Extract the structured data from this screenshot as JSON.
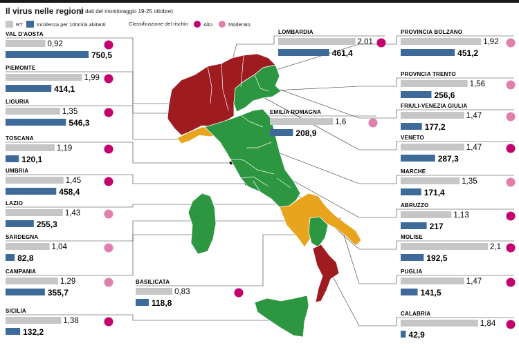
{
  "title": "Il virus nelle regioni",
  "subtitle": "(I dati del monitoraggio 19-25 ottobre)",
  "legend": {
    "rt": "RT",
    "incidence": "Incidenza per 100mila abitanti",
    "risk_label": "Classificazione del rischio",
    "high": "Alto",
    "moderate": "Moderato"
  },
  "colors": {
    "rt_bar": "#c6c6c6",
    "incidence_bar": "#3d6a98",
    "high": "#c4006e",
    "moderate": "#e07fae",
    "map_red": "#9e1b20",
    "map_green": "#2d9640",
    "map_orange": "#e9a41e"
  },
  "chart_data": {
    "type": "bar",
    "series": [
      {
        "name": "RT",
        "key": "rt"
      },
      {
        "name": "Incidenza per 100mila abitanti",
        "key": "incidence"
      }
    ],
    "rt_max": 2.1,
    "incidence_max": 750.5,
    "regions": [
      {
        "name": "VAL D'AOSTA",
        "rt": 0.92,
        "rt_label": "0,92",
        "incidence": 750.5,
        "incidence_label": "750,5",
        "risk": "Alto"
      },
      {
        "name": "PIEMONTE",
        "rt": 1.99,
        "rt_label": "1,99",
        "incidence": 414.1,
        "incidence_label": "414,1",
        "risk": "Alto"
      },
      {
        "name": "LIGURIA",
        "rt": 1.35,
        "rt_label": "1,35",
        "incidence": 546.3,
        "incidence_label": "546,3",
        "risk": "Alto"
      },
      {
        "name": "TOSCANA",
        "rt": 1.19,
        "rt_label": "1,19",
        "incidence": 120.1,
        "incidence_label": "120,1",
        "risk": "Alto"
      },
      {
        "name": "UMBRIA",
        "rt": 1.45,
        "rt_label": "1,45",
        "incidence": 458.4,
        "incidence_label": "458,4",
        "risk": "Alto"
      },
      {
        "name": "LAZIO",
        "rt": 1.43,
        "rt_label": "1,43",
        "incidence": 255.3,
        "incidence_label": "255,3",
        "risk": "Moderato"
      },
      {
        "name": "SARDEGNA",
        "rt": 1.04,
        "rt_label": "1,04",
        "incidence": 82.8,
        "incidence_label": "82,8",
        "risk": "Moderato"
      },
      {
        "name": "CAMPANIA",
        "rt": 1.29,
        "rt_label": "1,29",
        "incidence": 355.7,
        "incidence_label": "355,7",
        "risk": "Moderato"
      },
      {
        "name": "SICILIA",
        "rt": 1.38,
        "rt_label": "1,38",
        "incidence": 132.2,
        "incidence_label": "132,2",
        "risk": "Alto"
      },
      {
        "name": "LOMBARDIA",
        "rt": 2.01,
        "rt_label": "2,01",
        "incidence": 461.4,
        "incidence_label": "461,4",
        "risk": "Alto"
      },
      {
        "name": "EMILIA ROMAGNA",
        "rt": 1.6,
        "rt_label": "1,6",
        "incidence": 208.9,
        "incidence_label": "208,9",
        "risk": "Moderato"
      },
      {
        "name": "BASILICATA",
        "rt": 0.83,
        "rt_label": "0,83",
        "incidence": 118.8,
        "incidence_label": "118,8",
        "risk": "Alto"
      },
      {
        "name": "PROVINCIA BOLZANO",
        "rt": 1.92,
        "rt_label": "1,92",
        "incidence": 451.2,
        "incidence_label": "451,2",
        "risk": "Moderato"
      },
      {
        "name": "PROVNCIA TRENTO",
        "rt": 1.56,
        "rt_label": "1,56",
        "incidence": 256.6,
        "incidence_label": "256,6",
        "risk": "Moderato"
      },
      {
        "name": "FRIULI-VENEZIA GIULIA",
        "rt": 1.47,
        "rt_label": "1,47",
        "incidence": 177.2,
        "incidence_label": "177,2",
        "risk": "Moderato"
      },
      {
        "name": "VENETO",
        "rt": 1.47,
        "rt_label": "1,47",
        "incidence": 287.3,
        "incidence_label": "287,3",
        "risk": "Alto"
      },
      {
        "name": "MARCHE",
        "rt": 1.35,
        "rt_label": "1,35",
        "incidence": 171.4,
        "incidence_label": "171,4",
        "risk": "Moderato"
      },
      {
        "name": "ABRUZZO",
        "rt": 1.13,
        "rt_label": "1,13",
        "incidence": 217,
        "incidence_label": "217",
        "risk": "Alto"
      },
      {
        "name": "MOLISE",
        "rt": 2.1,
        "rt_label": "2,1",
        "incidence": 192.5,
        "incidence_label": "192,5",
        "risk": "Alto"
      },
      {
        "name": "PUGLIA",
        "rt": 1.47,
        "rt_label": "1,47",
        "incidence": 141.5,
        "incidence_label": "141,5",
        "risk": "Alto"
      },
      {
        "name": "CALABRIA",
        "rt": 1.84,
        "rt_label": "1,84",
        "incidence": 42.9,
        "incidence_label": "42,9",
        "risk": "Alto"
      }
    ]
  }
}
